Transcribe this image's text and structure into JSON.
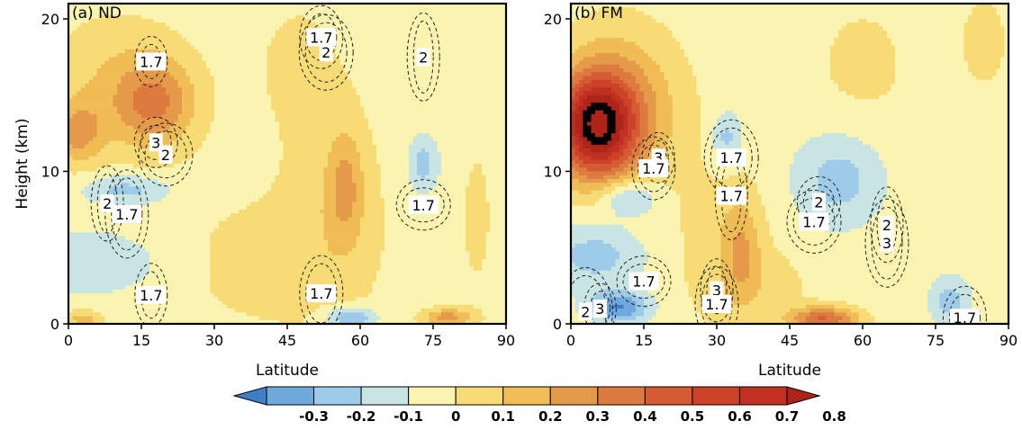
{
  "chart_data": [
    {
      "type": "heatmap",
      "panel_label": "(a) ND",
      "xlabel": "Latitude",
      "ylabel": "Height (km)",
      "xlim": [
        0,
        90
      ],
      "ylim": [
        0,
        21
      ],
      "x_ticks": [
        "0",
        "15",
        "30",
        "45",
        "60",
        "75",
        "90"
      ],
      "y_ticks": [
        "0",
        "10",
        "20"
      ],
      "field_background_value": -0.05,
      "field_anomalies": [
        {
          "lat": 18,
          "z": 14.5,
          "value": 0.3,
          "dlat": 8,
          "dz": 2.8
        },
        {
          "lat": 2,
          "z": 12.5,
          "value": 0.25,
          "dlat": 5,
          "dz": 2.0
        },
        {
          "lat": 10,
          "z": 15.5,
          "value": 0.15,
          "dlat": 14,
          "dz": 4.5
        },
        {
          "lat": 12,
          "z": 8.8,
          "value": -0.2,
          "dlat": 9,
          "dz": 1.0
        },
        {
          "lat": 5,
          "z": 4,
          "value": -0.15,
          "dlat": 14,
          "dz": 2.0
        },
        {
          "lat": 57,
          "z": 9,
          "value": 0.2,
          "dlat": 3.5,
          "dz": 3.5
        },
        {
          "lat": 55,
          "z": 8,
          "value": 0.1,
          "dlat": 10,
          "dz": 7
        },
        {
          "lat": 58,
          "z": 0.4,
          "value": -0.3,
          "dlat": 5,
          "dz": 0.7
        },
        {
          "lat": 73,
          "z": 10.5,
          "value": -0.2,
          "dlat": 3,
          "dz": 1.8
        },
        {
          "lat": 78,
          "z": 0.4,
          "value": 0.3,
          "dlat": 5,
          "dz": 0.6
        },
        {
          "lat": 40,
          "z": 4,
          "value": 0.08,
          "dlat": 20,
          "dz": 5
        },
        {
          "lat": 3,
          "z": 0.3,
          "value": 0.2,
          "dlat": 4,
          "dz": 0.6
        },
        {
          "lat": 84,
          "z": 7,
          "value": 0.07,
          "dlat": 4,
          "dz": 6
        },
        {
          "lat": 47,
          "z": 17,
          "value": 0.07,
          "dlat": 10,
          "dz": 5
        }
      ],
      "contour_labels": [
        {
          "text": "1.7",
          "lat": 17,
          "z": 17.2
        },
        {
          "text": "1.7",
          "lat": 52,
          "z": 18.8
        },
        {
          "text": "2",
          "lat": 53,
          "z": 17.8
        },
        {
          "text": "2",
          "lat": 73,
          "z": 17.5
        },
        {
          "text": "3",
          "lat": 18,
          "z": 11.9
        },
        {
          "text": "2",
          "lat": 20,
          "z": 11.1
        },
        {
          "text": "2",
          "lat": 8,
          "z": 7.9
        },
        {
          "text": "1.7",
          "lat": 12,
          "z": 7.2
        },
        {
          "text": "1.7",
          "lat": 73,
          "z": 7.8
        },
        {
          "text": "1.7",
          "lat": 17,
          "z": 1.9
        },
        {
          "text": "1.7",
          "lat": 52,
          "z": 2.0
        }
      ]
    },
    {
      "type": "heatmap",
      "panel_label": "(b) FM",
      "xlabel": "Latitude",
      "ylabel": "",
      "xlim": [
        0,
        90
      ],
      "ylim": [
        0,
        21
      ],
      "x_ticks": [
        "0",
        "15",
        "30",
        "45",
        "60",
        "75",
        "90"
      ],
      "y_ticks": [
        "0",
        "10",
        "20"
      ],
      "field_background_value": -0.05,
      "field_anomalies": [
        {
          "lat": 5,
          "z": 13,
          "value": 0.75,
          "dlat": 8,
          "dz": 3.3
        },
        {
          "lat": 10,
          "z": 14,
          "value": 0.3,
          "dlat": 12,
          "dz": 5
        },
        {
          "lat": 32,
          "z": 12.2,
          "value": -0.2,
          "dlat": 3,
          "dz": 1.7
        },
        {
          "lat": 55,
          "z": 9.5,
          "value": -0.2,
          "dlat": 9,
          "dz": 3
        },
        {
          "lat": 12,
          "z": 8.3,
          "value": -0.25,
          "dlat": 6,
          "dz": 1.2
        },
        {
          "lat": 5,
          "z": 4.5,
          "value": -0.2,
          "dlat": 10,
          "dz": 2.2
        },
        {
          "lat": 10,
          "z": 1.1,
          "value": -0.35,
          "dlat": 6,
          "dz": 1.0
        },
        {
          "lat": 52,
          "z": 0.3,
          "value": 0.45,
          "dlat": 7,
          "dz": 0.8
        },
        {
          "lat": 35,
          "z": 5,
          "value": 0.2,
          "dlat": 4,
          "dz": 3.5
        },
        {
          "lat": 30,
          "z": 5,
          "value": 0.08,
          "dlat": 10,
          "dz": 6
        },
        {
          "lat": 78,
          "z": 1.5,
          "value": -0.2,
          "dlat": 4,
          "dz": 1.5
        },
        {
          "lat": 85,
          "z": 18.5,
          "value": 0.1,
          "dlat": 5,
          "dz": 3
        },
        {
          "lat": 60,
          "z": 17,
          "value": 0.07,
          "dlat": 12,
          "dz": 5
        },
        {
          "lat": 40,
          "z": 2.5,
          "value": 0.08,
          "dlat": 10,
          "dz": 2.5
        }
      ],
      "contour_labels": [
        {
          "text": "3",
          "lat": 18,
          "z": 10.9
        },
        {
          "text": "1.7",
          "lat": 17,
          "z": 10.2
        },
        {
          "text": "1.7",
          "lat": 33,
          "z": 10.9
        },
        {
          "text": "1.7",
          "lat": 33,
          "z": 8.4
        },
        {
          "text": "2",
          "lat": 51,
          "z": 8.0
        },
        {
          "text": "1.7",
          "lat": 50,
          "z": 6.7
        },
        {
          "text": "2",
          "lat": 65,
          "z": 6.5
        },
        {
          "text": "3",
          "lat": 65,
          "z": 5.3
        },
        {
          "text": "1.7",
          "lat": 15,
          "z": 2.8
        },
        {
          "text": "3",
          "lat": 30,
          "z": 2.2
        },
        {
          "text": "1.7",
          "lat": 30,
          "z": 1.3
        },
        {
          "text": "2",
          "lat": 3,
          "z": 0.8
        },
        {
          "text": "3",
          "lat": 6,
          "z": 1.0
        },
        {
          "text": "1.7",
          "lat": 81,
          "z": 0.4
        }
      ]
    }
  ],
  "colorbar": {
    "levels": [
      -0.4,
      -0.3,
      -0.2,
      -0.1,
      0,
      0.1,
      0.2,
      0.3,
      0.4,
      0.5,
      0.6,
      0.7,
      0.8,
      0.9
    ],
    "tick_labels": [
      "-0.3",
      "-0.2",
      "-0.1",
      "0",
      "0.1",
      "0.2",
      "0.3",
      "0.4",
      "0.5",
      "0.6",
      "0.7",
      "0.8"
    ],
    "colors": [
      "#3f7fc8",
      "#6fa9dc",
      "#9fcbeb",
      "#c9e5e3",
      "#fbf4b0",
      "#f7dc76",
      "#efbc55",
      "#e49a48",
      "#dc7a3f",
      "#d55b33",
      "#cc4229",
      "#bf2f22",
      "#ae2419"
    ]
  }
}
